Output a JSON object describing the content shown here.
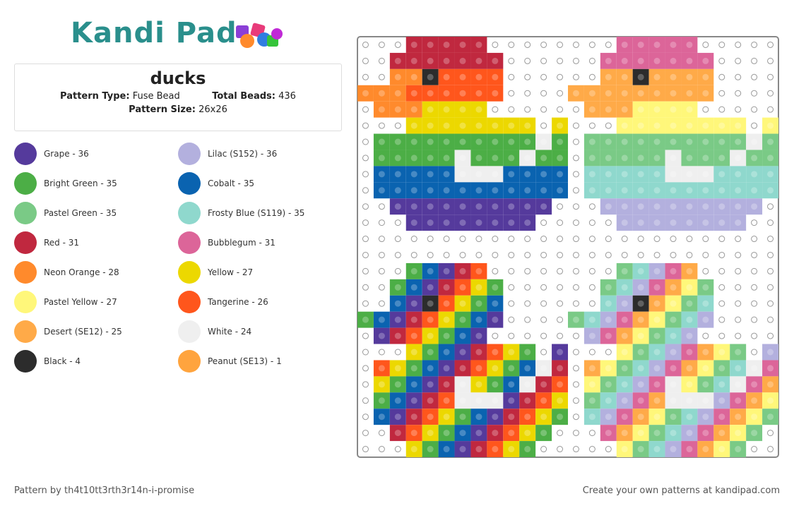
{
  "header": {
    "logo": "Kandi Pad"
  },
  "info": {
    "title": "ducks",
    "pattern_type_label": "Pattern Type:",
    "pattern_type": "Fuse Bead",
    "total_beads_label": "Total Beads:",
    "total_beads": 436,
    "pattern_size_label": "Pattern Size:",
    "pattern_size": "26x26"
  },
  "colors": [
    {
      "label": "Grape - 36",
      "color": "#553a9c"
    },
    {
      "label": "Lilac (S152) - 36",
      "color": "#b3b0de"
    },
    {
      "label": "Bright Green - 35",
      "color": "#4cae46"
    },
    {
      "label": "Cobalt - 35",
      "color": "#0a63b0"
    },
    {
      "label": "Pastel Green - 35",
      "color": "#7aca86"
    },
    {
      "label": "Frosty Blue (S119) - 35",
      "color": "#8fd8cd"
    },
    {
      "label": "Red - 31",
      "color": "#c0283f"
    },
    {
      "label": "Bubblegum - 31",
      "color": "#dc6599"
    },
    {
      "label": "Neon Orange - 28",
      "color": "#ff8a2c"
    },
    {
      "label": "Yellow - 27",
      "color": "#ecd800"
    },
    {
      "label": "Pastel Yellow - 27",
      "color": "#fff77a"
    },
    {
      "label": "Tangerine - 26",
      "color": "#ff561c"
    },
    {
      "label": "Desert (SE12) - 25",
      "color": "#ffaa48"
    },
    {
      "label": "White - 24",
      "color": "#efefef"
    },
    {
      "label": "Black - 4",
      "color": "#2c2c2c"
    },
    {
      "label": "Peanut (SE13) - 1",
      "color": "#ffa43e"
    }
  ],
  "footer": {
    "credit": "Pattern by th4t10tt3rth3r14n-i-promise",
    "cta": "Create your own patterns at kandipad.com"
  }
}
